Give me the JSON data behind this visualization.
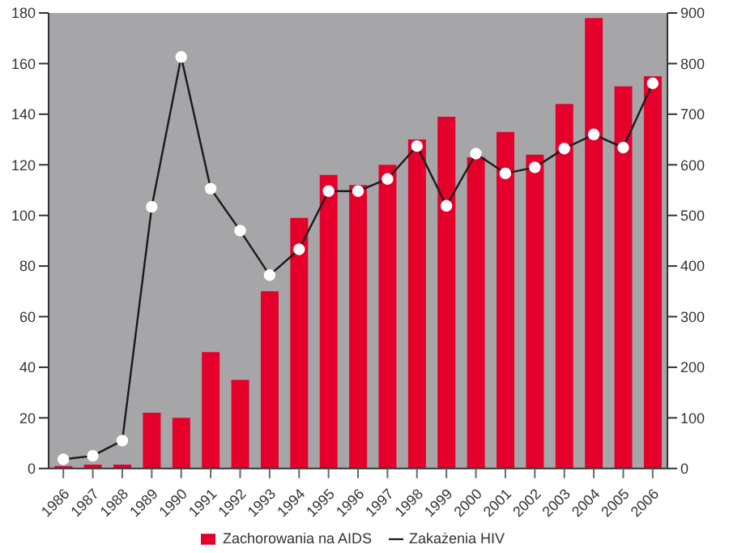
{
  "chart_data": {
    "type": "bar",
    "categories": [
      "1986",
      "1987",
      "1988",
      "1989",
      "1990",
      "1991",
      "1992",
      "1993",
      "1994",
      "1995",
      "1996",
      "1997",
      "1998",
      "1999",
      "2000",
      "2001",
      "2002",
      "2003",
      "2004",
      "2005",
      "2006"
    ],
    "series": [
      {
        "name": "Zachorowania na AIDS",
        "color": "#e4002b",
        "values": [
          1,
          1.5,
          1.5,
          22,
          20,
          46,
          35,
          70,
          99,
          116,
          112,
          120,
          130,
          139,
          123,
          133,
          124,
          144,
          178,
          151,
          155
        ]
      },
      {
        "name": "Zakażenia HIV",
        "type": "line",
        "axis": "y2",
        "color": "#1a1a1a",
        "marker": "circle",
        "values": [
          18,
          25,
          55,
          517,
          813,
          553,
          470,
          382,
          433,
          548,
          548,
          572,
          637,
          519,
          622,
          583,
          595,
          632,
          660,
          634,
          761
        ]
      }
    ],
    "ylim": [
      0,
      180
    ],
    "yticks": [
      0,
      20,
      40,
      60,
      80,
      100,
      120,
      140,
      160,
      180
    ],
    "y2lim": [
      0,
      900
    ],
    "y2ticks": [
      0,
      100,
      200,
      300,
      400,
      500,
      600,
      700,
      800,
      900
    ],
    "grid": false,
    "legend": "bottom"
  }
}
